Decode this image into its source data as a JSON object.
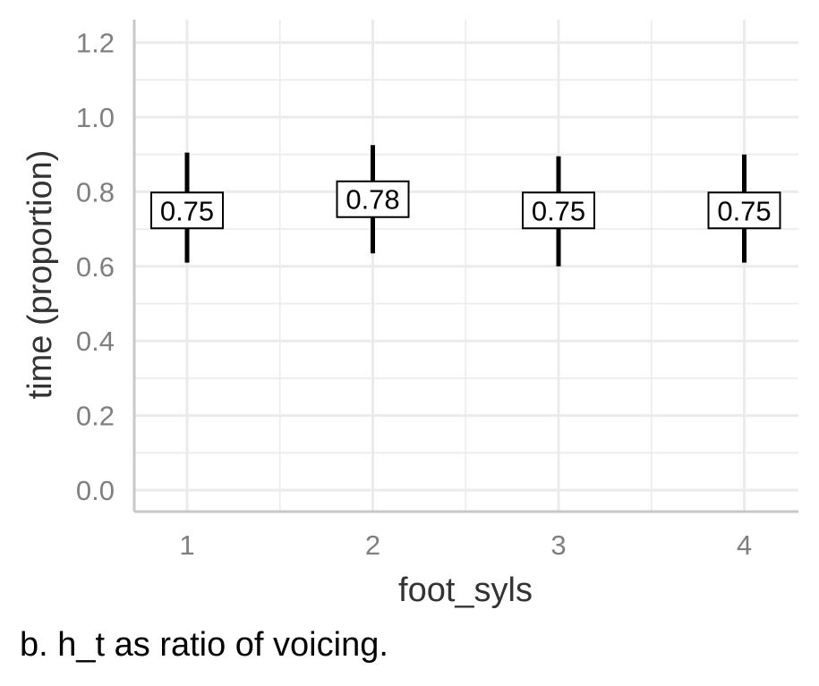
{
  "chart_data": {
    "type": "errorbar",
    "x": [
      "1",
      "2",
      "3",
      "4"
    ],
    "values": [
      0.75,
      0.78,
      0.75,
      0.75
    ],
    "lower": [
      0.61,
      0.635,
      0.6,
      0.61
    ],
    "upper": [
      0.905,
      0.925,
      0.895,
      0.9
    ],
    "data_labels": [
      "0.75",
      "0.78",
      "0.75",
      "0.75"
    ],
    "xlabel": "foot_syls",
    "ylabel": "time (proportion)",
    "ylim": [
      -0.06,
      1.26
    ],
    "yticks": [
      0.0,
      0.2,
      0.4,
      0.6,
      0.8,
      1.0,
      1.2
    ],
    "ytick_labels": [
      "0.0",
      "0.2",
      "0.4",
      "0.6",
      "0.8",
      "1.0",
      "1.2"
    ],
    "grid": true,
    "legend": "none",
    "colors": {
      "bar": "#000000",
      "grid": "#ebebeb",
      "axis_line": "#c8c8c8",
      "tick_label": "#7f7f7f",
      "axis_title": "#333333"
    }
  },
  "caption": "b.  h_t as ratio of voicing."
}
